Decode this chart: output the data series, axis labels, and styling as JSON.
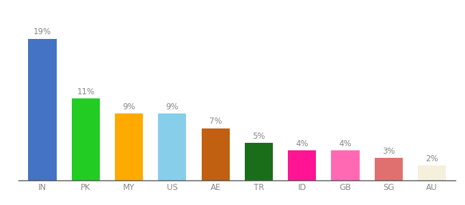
{
  "categories": [
    "IN",
    "PK",
    "MY",
    "US",
    "AE",
    "TR",
    "ID",
    "GB",
    "SG",
    "AU"
  ],
  "values": [
    19,
    11,
    9,
    9,
    7,
    5,
    4,
    4,
    3,
    2
  ],
  "bar_colors": [
    "#4472c4",
    "#22cc22",
    "#ffaa00",
    "#87ceeb",
    "#c06010",
    "#1a6e1a",
    "#ff1493",
    "#ff69b4",
    "#e07070",
    "#f5f0dc"
  ],
  "ylim": [
    0,
    22
  ],
  "label_fontsize": 8.5,
  "tick_fontsize": 8.5,
  "bar_width": 0.65,
  "label_color": "#888888",
  "tick_color": "#888888",
  "background_color": "#ffffff",
  "spine_color": "#555555"
}
